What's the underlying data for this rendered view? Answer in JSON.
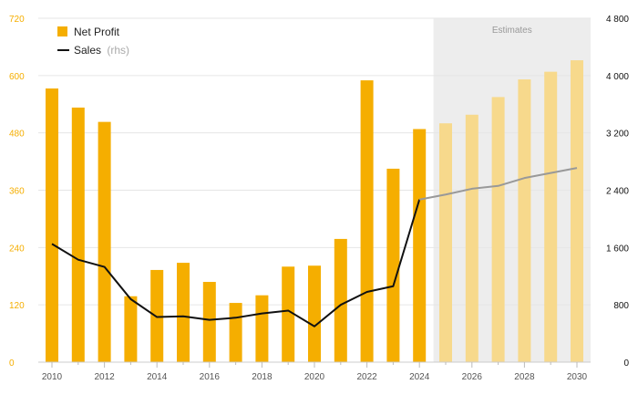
{
  "colors": {
    "bar": "#F5AE00",
    "bar_estimate": "#F7D98C",
    "line": "#111111",
    "line_estimate": "#999999",
    "estimate_band": "#EDEDED",
    "left_axis_text": "#F5AE00",
    "right_axis_text": "#111111"
  },
  "chart_data": {
    "type": "bar+line",
    "x": [
      2010,
      2011,
      2012,
      2013,
      2014,
      2015,
      2016,
      2017,
      2018,
      2019,
      2020,
      2021,
      2022,
      2023,
      2024,
      2025,
      2026,
      2027,
      2028,
      2029,
      2030
    ],
    "x_tick_labels": [
      "2010",
      "2012",
      "2014",
      "2016",
      "2018",
      "2020",
      "2022",
      "2024",
      "2026",
      "2028",
      "2030"
    ],
    "estimates_from": 2025,
    "estimates_label": "Estimates",
    "series": [
      {
        "name": "Net Profit",
        "kind": "bar",
        "axis": "left",
        "values": [
          573,
          533,
          503,
          138,
          193,
          208,
          168,
          124,
          140,
          200,
          202,
          258,
          590,
          405,
          488,
          500,
          518,
          555,
          592,
          608,
          632
        ]
      },
      {
        "name": "Sales",
        "name_suffix": "(rhs)",
        "kind": "line",
        "axis": "right",
        "values": [
          1650,
          1430,
          1330,
          880,
          630,
          640,
          590,
          620,
          680,
          720,
          500,
          800,
          980,
          1060,
          2270,
          2340,
          2420,
          2460,
          2570,
          2640,
          2710
        ]
      }
    ],
    "y_left": {
      "range": [
        0,
        720
      ],
      "ticks": [
        0,
        120,
        240,
        360,
        480,
        600,
        720
      ],
      "tick_labels": [
        "0",
        "120",
        "240",
        "360",
        "480",
        "600",
        "720"
      ]
    },
    "y_right": {
      "range": [
        0,
        4800
      ],
      "ticks": [
        0,
        800,
        1600,
        2400,
        3200,
        4000,
        4800
      ],
      "tick_labels": [
        "0",
        "800",
        "1 600",
        "2 400",
        "3 200",
        "4 000",
        "4 800"
      ]
    },
    "grid": true,
    "legend_position": "top-left"
  }
}
